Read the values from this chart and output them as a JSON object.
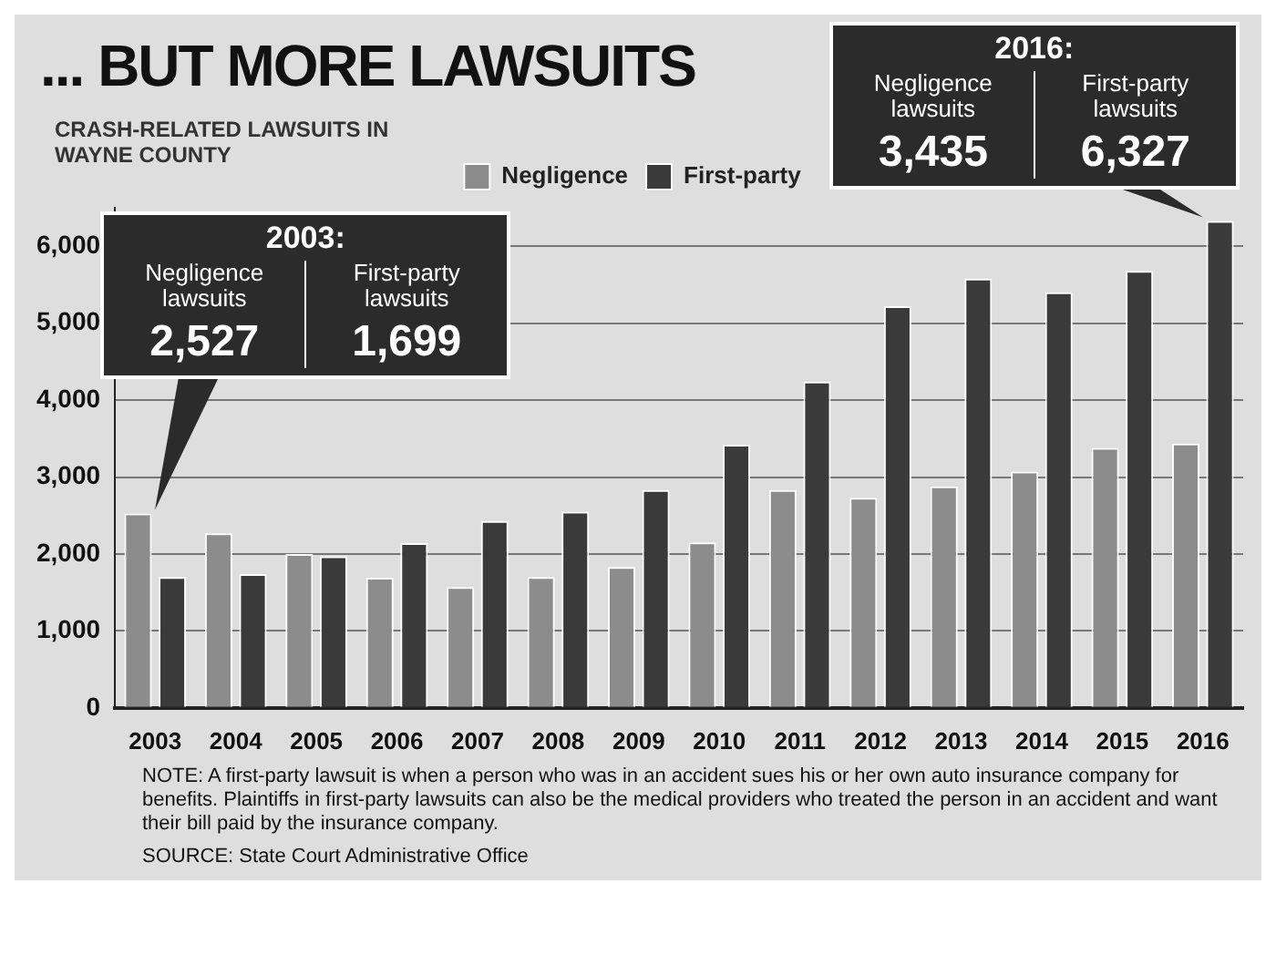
{
  "chart_data": {
    "type": "bar",
    "title": "... BUT MORE LAWSUITS",
    "subtitle": "CRASH-RELATED LAWSUITS IN WAYNE COUNTY",
    "categories": [
      "2003",
      "2004",
      "2005",
      "2006",
      "2007",
      "2008",
      "2009",
      "2010",
      "2011",
      "2012",
      "2013",
      "2014",
      "2015",
      "2016"
    ],
    "series": [
      {
        "name": "Negligence",
        "color": "#8c8c8c",
        "values": [
          2527,
          2270,
          2000,
          1690,
          1570,
          1700,
          1830,
          2150,
          2830,
          2730,
          2880,
          3070,
          3380,
          3435
        ]
      },
      {
        "name": "First-party",
        "color": "#3a3a3a",
        "values": [
          1699,
          1740,
          1970,
          2140,
          2430,
          2550,
          2830,
          3420,
          4240,
          5220,
          5580,
          5400,
          5680,
          6327
        ]
      }
    ],
    "ylim": [
      0,
      6500
    ],
    "yticks": [
      0,
      {
        "value": 1000,
        "label": "1,000"
      },
      {
        "value": 2000,
        "label": "2,000"
      },
      {
        "value": 3000,
        "label": "3,000"
      },
      {
        "value": 4000,
        "label": "4,000"
      },
      {
        "value": 5000,
        "label": "5,000"
      },
      {
        "value": 6000,
        "label": "6,000"
      }
    ],
    "grid": "y",
    "legend": "top",
    "annotations": [
      "2003:",
      "Negligence lawsuits",
      "2,527",
      "First-party lawsuits",
      "1,699",
      "2016:",
      "Negligence lawsuits",
      "3,435",
      "First-party lawsuits",
      "6,327",
      "NOTE: A first-party lawsuit is when a person who was in an accident sues his or her own auto insurance company for benefits. Plaintiffs in first-party lawsuits can also be the medical providers who treated the person in an accident and want their bill paid by the insurance company.",
      "SOURCE: State Court Administrative Office"
    ]
  }
}
